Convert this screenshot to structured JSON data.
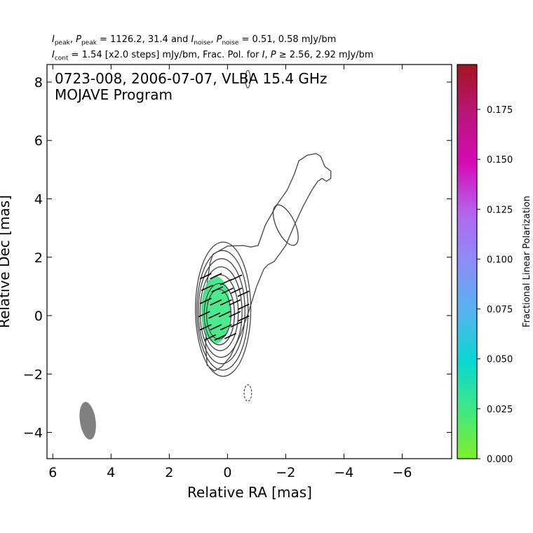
{
  "header": {
    "line1": {
      "i_peak_symbol": "I",
      "i_peak_sub": "peak",
      "p_peak_symbol": "P",
      "p_peak_sub": "peak",
      "peak_values": "1126.2, 31.4",
      "and_word": "and",
      "i_noise_symbol": "I",
      "i_noise_sub": "noise",
      "p_noise_symbol": "P",
      "p_noise_sub": "noise",
      "noise_values": "0.51, 0.58 mJy/bm"
    },
    "line2": {
      "i_cont_symbol": "I",
      "i_cont_sub": "cont",
      "cont_text": " = 1.54 [x2.0 steps] mJy/bm, Frac. Pol. for ",
      "i_symbol": "I",
      "p_symbol": "P",
      "threshold_text": " ≥ 2.56, 2.92 mJy/bm"
    }
  },
  "chart_data": {
    "type": "contour",
    "title_line1": "0723-008, 2006-07-07, VLBA 15.4 GHz",
    "title_line2": "MOJAVE Program",
    "xlabel": "Relative RA [mas]",
    "ylabel": "Relative Dec [mas]",
    "xlim": [
      6.2,
      -7.7
    ],
    "ylim": [
      -4.9,
      8.6
    ],
    "xticks": [
      6,
      4,
      2,
      0,
      -2,
      -4,
      -6
    ],
    "xtick_labels": [
      "6",
      "4",
      "2",
      "0",
      "−2",
      "−4",
      "−6"
    ],
    "yticks": [
      -4,
      -2,
      0,
      2,
      4,
      6,
      8
    ],
    "ytick_labels": [
      "−4",
      "−2",
      "0",
      "2",
      "4",
      "6",
      "8"
    ],
    "intensity_peak_mJy_per_beam": 1126.2,
    "polarized_peak_mJy_per_beam": 31.4,
    "intensity_noise_mJy_per_beam": 0.51,
    "polarized_noise_mJy_per_beam": 0.58,
    "lowest_contour_mJy_per_beam": 1.54,
    "contour_step_factor": 2.0,
    "core_contours": [
      {
        "cx": 0.3,
        "cy": 0.05,
        "rx": 0.42,
        "ry": 0.85
      },
      {
        "cx": 0.28,
        "cy": 0.05,
        "rx": 0.52,
        "ry": 1.05
      },
      {
        "cx": 0.25,
        "cy": 0.1,
        "rx": 0.62,
        "ry": 1.3
      },
      {
        "cx": 0.22,
        "cy": 0.12,
        "rx": 0.72,
        "ry": 1.55
      },
      {
        "cx": 0.2,
        "cy": 0.15,
        "rx": 0.8,
        "ry": 1.8
      },
      {
        "cx": 0.17,
        "cy": 0.18,
        "rx": 0.88,
        "ry": 2.05
      },
      {
        "cx": 0.15,
        "cy": 0.22,
        "rx": 0.95,
        "ry": 2.3
      }
    ],
    "outer_contour_path": [
      [
        0.5,
        2.1
      ],
      [
        0.0,
        2.38
      ],
      [
        -0.55,
        2.4
      ],
      [
        -0.8,
        2.35
      ],
      [
        -1.05,
        2.4
      ],
      [
        -1.3,
        3.1
      ],
      [
        -1.7,
        3.8
      ],
      [
        -2.05,
        4.3
      ],
      [
        -2.3,
        4.85
      ],
      [
        -2.45,
        5.3
      ],
      [
        -2.75,
        5.5
      ],
      [
        -3.05,
        5.55
      ],
      [
        -3.2,
        5.45
      ],
      [
        -3.35,
        5.1
      ],
      [
        -3.55,
        4.95
      ],
      [
        -3.55,
        4.7
      ],
      [
        -3.4,
        4.6
      ],
      [
        -3.25,
        4.7
      ],
      [
        -3.1,
        4.6
      ],
      [
        -2.9,
        4.3
      ],
      [
        -2.6,
        3.75
      ],
      [
        -2.3,
        3.1
      ],
      [
        -2.0,
        2.4
      ],
      [
        -1.6,
        1.85
      ],
      [
        -1.4,
        1.75
      ],
      [
        -1.25,
        1.6
      ],
      [
        -1.0,
        1.0
      ],
      [
        -0.75,
        0.2
      ],
      [
        -0.45,
        -0.65
      ],
      [
        -0.1,
        -1.4
      ],
      [
        0.2,
        -1.75
      ],
      [
        0.45,
        -1.9
      ],
      [
        0.7,
        -1.7
      ],
      [
        0.75,
        -1.0
      ],
      [
        0.7,
        0.0
      ],
      [
        0.7,
        1.1
      ],
      [
        0.6,
        1.8
      ],
      [
        0.5,
        2.1
      ]
    ],
    "inner_jet_contour": {
      "cx": -2.0,
      "cy": 3.1,
      "rx": 0.32,
      "ry": 0.75,
      "angle_deg": -25
    },
    "small_contour_top": {
      "cx": -0.7,
      "cy": 8.1,
      "rx": 0.08,
      "ry": 0.3,
      "dashed": false
    },
    "negative_contour": {
      "cx": -0.7,
      "cy": -2.65,
      "rx": 0.13,
      "ry": 0.28,
      "dashed": true
    },
    "beam": {
      "cx": 4.8,
      "cy": -3.6,
      "rx": 0.27,
      "ry": 0.65,
      "angle_deg": -8,
      "color": "#808080"
    },
    "polarization_region": {
      "cx": 0.4,
      "cy": 0.2,
      "rx": 0.5,
      "ry": 1.15,
      "fractional_polarization": 0.033,
      "fill": "#3de884"
    },
    "evpa_vectors": [
      [
        0.75,
        1.35
      ],
      [
        0.4,
        1.35
      ],
      [
        0.05,
        1.15
      ],
      [
        -0.3,
        1.3
      ],
      [
        0.7,
        0.95
      ],
      [
        0.35,
        0.9
      ],
      [
        0.0,
        0.85
      ],
      [
        -0.3,
        0.85
      ],
      [
        -0.55,
        0.75
      ],
      [
        0.75,
        0.5
      ],
      [
        0.4,
        0.45
      ],
      [
        0.05,
        0.45
      ],
      [
        -0.25,
        0.45
      ],
      [
        -0.55,
        0.3
      ],
      [
        0.8,
        0.05
      ],
      [
        0.45,
        0.0
      ],
      [
        0.1,
        0.05
      ],
      [
        -0.25,
        0.05
      ],
      [
        -0.55,
        -0.1
      ],
      [
        0.75,
        -0.4
      ],
      [
        0.4,
        -0.4
      ],
      [
        0.05,
        -0.4
      ],
      [
        -0.3,
        -0.3
      ],
      [
        0.6,
        -0.75
      ],
      [
        0.25,
        -0.75
      ],
      [
        -0.1,
        -0.7
      ]
    ],
    "evpa_angle_deg": 25,
    "colorbar": {
      "label": "Fractional Linear Polarization",
      "min": 0.0,
      "max": 0.1975,
      "ticks": [
        0.0,
        0.025,
        0.05,
        0.075,
        0.1,
        0.125,
        0.15,
        0.175
      ],
      "tick_labels": [
        "0.000",
        "0.025",
        "0.050",
        "0.075",
        "0.100",
        "0.125",
        "0.150",
        "0.175"
      ],
      "colormap_stops": [
        "#80f028",
        "#3de884",
        "#0ad6d2",
        "#55b4f0",
        "#8c8cf8",
        "#b464f0",
        "#d60ab4",
        "#b9157c",
        "#a6141e"
      ]
    },
    "contour_color": "#444444"
  }
}
